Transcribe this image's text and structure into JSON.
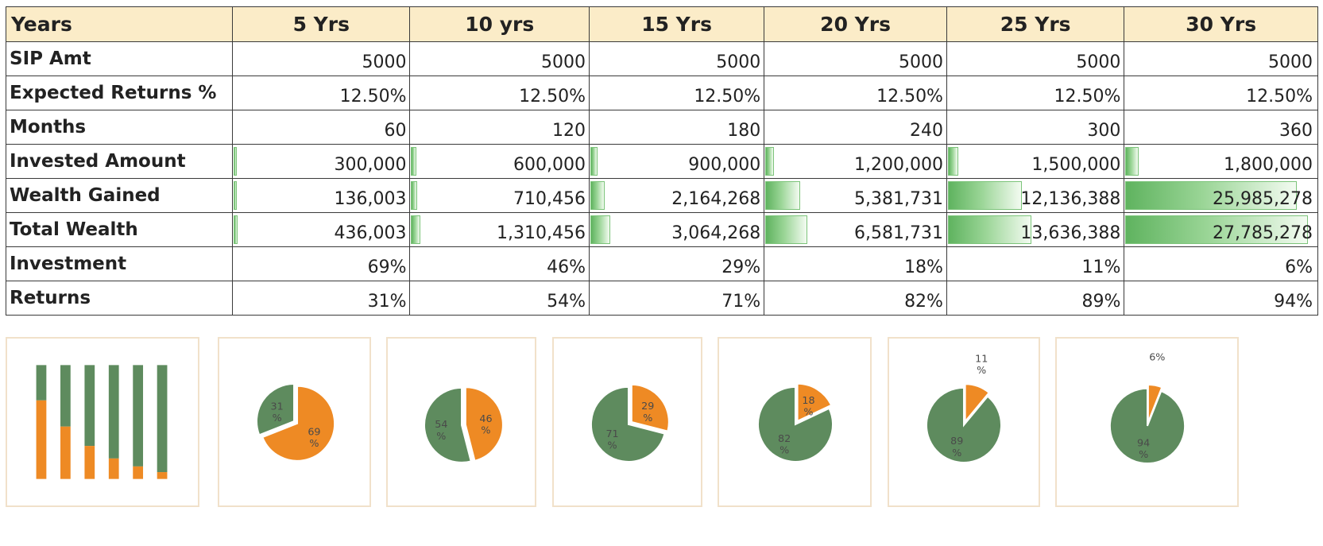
{
  "table": {
    "header": [
      "Years",
      "5 Yrs",
      "10 yrs",
      "15 Yrs",
      "20 Yrs",
      "25 Yrs",
      "30 Yrs"
    ],
    "rows": [
      {
        "label": "SIP Amt",
        "values": [
          "5000",
          "5000",
          "5000",
          "5000",
          "5000",
          "5000"
        ]
      },
      {
        "label": "Expected Returns %",
        "values": [
          "12.50%",
          "12.50%",
          "12.50%",
          "12.50%",
          "12.50%",
          "12.50%"
        ]
      },
      {
        "label": "Months",
        "values": [
          "60",
          "120",
          "180",
          "240",
          "300",
          "360"
        ]
      },
      {
        "label": "Invested Amount",
        "values": [
          "300,000",
          "600,000",
          "900,000",
          "1,200,000",
          "1,500,000",
          "1,800,000"
        ],
        "bar_values": [
          300000,
          600000,
          900000,
          1200000,
          1500000,
          1800000
        ]
      },
      {
        "label": "Wealth Gained",
        "values": [
          "136,003",
          "710,456",
          "2,164,268",
          "5,381,731",
          "12,136,388",
          "25,985,278"
        ],
        "bar_values": [
          136003,
          710456,
          2164268,
          5381731,
          12136388,
          25985278
        ]
      },
      {
        "label": "Total Wealth",
        "values": [
          "436,003",
          "1,310,456",
          "3,064,268",
          "6,581,731",
          "13,636,388",
          "27,785,278"
        ],
        "bar_values": [
          436003,
          1310456,
          3064268,
          6581731,
          13636388,
          27785278
        ]
      },
      {
        "label": "Investment",
        "values": [
          "69%",
          "46%",
          "29%",
          "18%",
          "11%",
          "6%"
        ]
      },
      {
        "label": "Returns",
        "values": [
          "31%",
          "54%",
          "71%",
          "82%",
          "89%",
          "94%"
        ]
      }
    ],
    "bar_max": 27785278
  },
  "colors": {
    "header_bg": "#fbecc8",
    "investment": "#ee8a24",
    "returns": "#5e8b5e",
    "chart_border": "#f1e1ca"
  },
  "chart_data": [
    {
      "type": "bar",
      "stacked": true,
      "categories": [
        "5 Yrs",
        "10 yrs",
        "15 Yrs",
        "20 Yrs",
        "25 Yrs",
        "30 Yrs"
      ],
      "series": [
        {
          "name": "Investment",
          "values": [
            69,
            46,
            29,
            18,
            11,
            6
          ]
        },
        {
          "name": "Returns",
          "values": [
            31,
            54,
            71,
            82,
            89,
            94
          ]
        }
      ],
      "ylim": [
        0,
        100
      ]
    },
    {
      "type": "pie",
      "slices": [
        {
          "name": "Investment",
          "value": 69,
          "label": [
            "69",
            "%"
          ]
        },
        {
          "name": "Returns",
          "value": 31,
          "label": [
            "31",
            "%"
          ]
        }
      ]
    },
    {
      "type": "pie",
      "slices": [
        {
          "name": "Investment",
          "value": 46,
          "label": [
            "46",
            "%"
          ]
        },
        {
          "name": "Returns",
          "value": 54,
          "label": [
            "54",
            "%"
          ]
        }
      ]
    },
    {
      "type": "pie",
      "slices": [
        {
          "name": "Investment",
          "value": 29,
          "label": [
            "29",
            "%"
          ]
        },
        {
          "name": "Returns",
          "value": 71,
          "label": [
            "71",
            "%"
          ]
        }
      ]
    },
    {
      "type": "pie",
      "slices": [
        {
          "name": "Investment",
          "value": 18,
          "label": [
            "18",
            "%"
          ]
        },
        {
          "name": "Returns",
          "value": 82,
          "label": [
            "82",
            "%"
          ]
        }
      ]
    },
    {
      "type": "pie",
      "slices": [
        {
          "name": "Investment",
          "value": 11,
          "label": [
            "11",
            "%"
          ]
        },
        {
          "name": "Returns",
          "value": 89,
          "label": [
            "89",
            "%"
          ]
        }
      ]
    },
    {
      "type": "pie",
      "slices": [
        {
          "name": "Investment",
          "value": 6,
          "label": [
            "6%"
          ]
        },
        {
          "name": "Returns",
          "value": 94,
          "label": [
            "94",
            "%"
          ]
        }
      ]
    }
  ]
}
